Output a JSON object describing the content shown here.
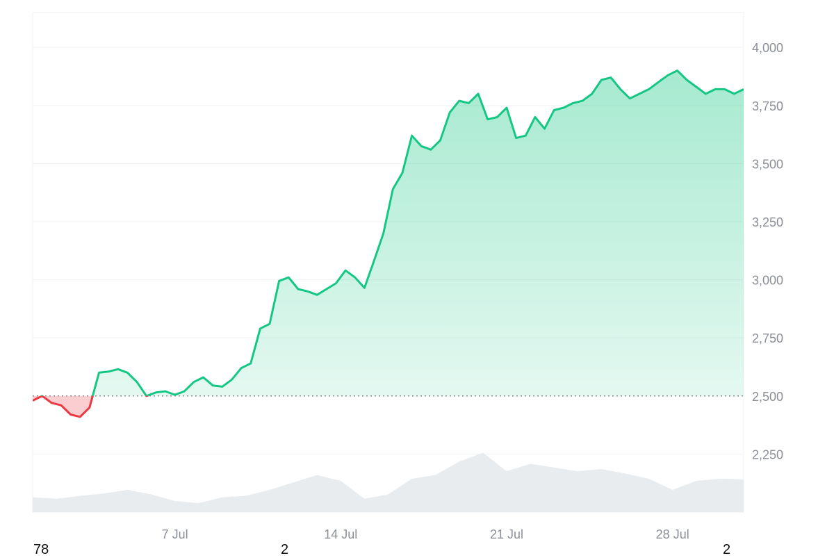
{
  "chart_data": {
    "type": "area",
    "title": "",
    "baseline": 2500,
    "ylim": [
      2000,
      4150
    ],
    "y_ticks": [
      "4,000",
      "3,750",
      "3,500",
      "3,250",
      "3,000",
      "2,750",
      "2,500",
      "2,250"
    ],
    "y_tick_values": [
      4000,
      3750,
      3500,
      3250,
      3000,
      2750,
      2500,
      2250
    ],
    "x_ticks": [
      "7 Jul",
      "14 Jul",
      "21 Jul",
      "28 Jul"
    ],
    "x_tick_days": [
      6,
      13,
      20,
      27
    ],
    "x_range_days": [
      0,
      30
    ],
    "colors": {
      "up": "#16c784",
      "down": "#ea3943",
      "up_fill": "#16c784",
      "down_fill": "#ea3943",
      "volume": "#e9ecef",
      "grid": "#eff2f5",
      "baseline": "#8a8f98"
    },
    "price": {
      "day": [
        0,
        0.4,
        0.8,
        1.2,
        1.6,
        2.0,
        2.4,
        2.8,
        3.2,
        3.6,
        4.0,
        4.4,
        4.8,
        5.2,
        5.6,
        6.0,
        6.4,
        6.8,
        7.2,
        7.6,
        8.0,
        8.4,
        8.8,
        9.2,
        9.6,
        10.0,
        10.4,
        10.8,
        11.2,
        11.6,
        12.0,
        12.4,
        12.8,
        13.2,
        13.6,
        14.0,
        14.4,
        14.8,
        15.2,
        15.6,
        16.0,
        16.4,
        16.8,
        17.2,
        17.6,
        18.0,
        18.4,
        18.8,
        19.2,
        19.6,
        20.0,
        20.4,
        20.8,
        21.2,
        21.6,
        22.0,
        22.4,
        22.8,
        23.2,
        23.6,
        24.0,
        24.4,
        24.8,
        25.2,
        25.6,
        26.0,
        26.4,
        26.8,
        27.2,
        27.6,
        28.0,
        28.4,
        28.8,
        29.2,
        29.6,
        30.0
      ],
      "value": [
        2480,
        2500,
        2470,
        2460,
        2420,
        2410,
        2450,
        2600,
        2605,
        2615,
        2600,
        2560,
        2500,
        2515,
        2520,
        2505,
        2520,
        2560,
        2580,
        2545,
        2540,
        2570,
        2620,
        2640,
        2790,
        2810,
        2995,
        3010,
        2960,
        2950,
        2935,
        2960,
        2985,
        3040,
        3010,
        2965,
        3080,
        3200,
        3390,
        3460,
        3620,
        3575,
        3560,
        3600,
        3720,
        3770,
        3760,
        3800,
        3690,
        3700,
        3740,
        3610,
        3620,
        3700,
        3650,
        3730,
        3740,
        3760,
        3770,
        3800,
        3860,
        3870,
        3820,
        3780,
        3800,
        3820,
        3850,
        3880,
        3900,
        3860,
        3830,
        3800,
        3820,
        3820,
        3800,
        3820
      ]
    },
    "volume": {
      "day": [
        0,
        1,
        2,
        3,
        4,
        5,
        6,
        7,
        8,
        9,
        10,
        11,
        12,
        13,
        14,
        15,
        16,
        17,
        18,
        19,
        20,
        21,
        22,
        23,
        24,
        25,
        26,
        27,
        28,
        29,
        30
      ],
      "relative": [
        0.2,
        0.18,
        0.22,
        0.25,
        0.3,
        0.24,
        0.15,
        0.12,
        0.2,
        0.22,
        0.3,
        0.4,
        0.5,
        0.42,
        0.18,
        0.24,
        0.45,
        0.5,
        0.68,
        0.8,
        0.55,
        0.65,
        0.6,
        0.55,
        0.58,
        0.52,
        0.45,
        0.3,
        0.42,
        0.45,
        0.44
      ]
    }
  },
  "bottom_labels": {
    "left": "78",
    "center": "2",
    "right": "2"
  }
}
